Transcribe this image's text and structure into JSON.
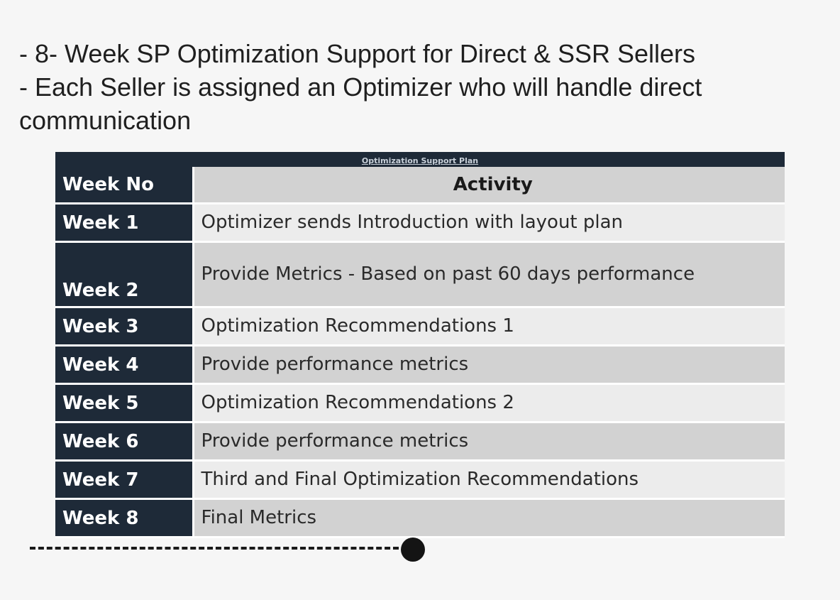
{
  "slide": {
    "bullets": [
      "- 8- Week SP Optimization Support for Direct & SSR Sellers",
      "- Each Seller is assigned an Optimizer who will handle direct",
      "communication"
    ]
  },
  "plan": {
    "title": "Optimization Support Plan",
    "headers": {
      "week": "Week No",
      "activity": "Activity"
    },
    "rows": [
      {
        "week": "Week 1",
        "activity": "Optimizer sends Introduction with layout plan"
      },
      {
        "week": "Week 2",
        "activity": "Provide Metrics - Based on past 60 days performance"
      },
      {
        "week": "Week 3",
        "activity": "Optimization Recommendations 1"
      },
      {
        "week": "Week 4",
        "activity": "Provide performance metrics"
      },
      {
        "week": "Week 5",
        "activity": "Optimization Recommendations 2"
      },
      {
        "week": "Week 6",
        "activity": "Provide performance metrics"
      },
      {
        "week": "Week 7",
        "activity": "Third and Final Optimization Recommendations"
      },
      {
        "week": "Week 8",
        "activity": "Final Metrics"
      }
    ]
  },
  "colors": {
    "navy": "#1e2a38",
    "row_light": "#ececec",
    "row_dark": "#d2d2d2",
    "background": "#f6f6f6"
  }
}
